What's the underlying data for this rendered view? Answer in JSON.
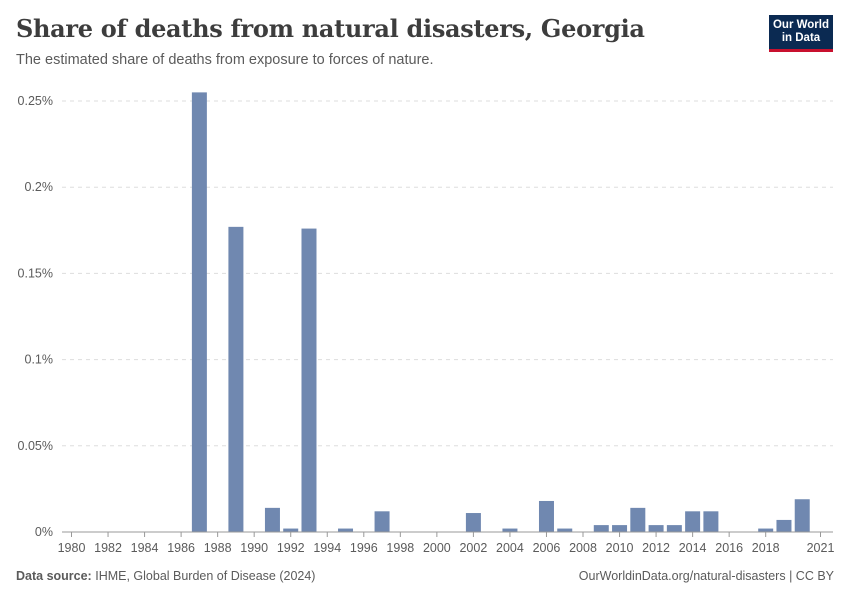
{
  "header": {
    "title": "Share of deaths from natural disasters, Georgia",
    "subtitle": "The estimated share of deaths from exposure to forces of nature.",
    "logo_line1": "Our World",
    "logo_line2": "in Data"
  },
  "footer": {
    "source_label": "Data source:",
    "source_text": "IHME, Global Burden of Disease (2024)",
    "link_text": "OurWorldinData.org/natural-disasters | CC BY"
  },
  "colors": {
    "bar": "#7088b0",
    "grid": "#dddddd",
    "axis": "#999999"
  },
  "chart_data": {
    "type": "bar",
    "title": "Share of deaths from natural disasters, Georgia",
    "xlabel": "",
    "ylabel": "",
    "ylim": [
      0,
      0.25
    ],
    "yticks": [
      0,
      0.05,
      0.1,
      0.15,
      0.2,
      0.25
    ],
    "ytick_labels": [
      "0%",
      "0.05%",
      "0.1%",
      "0.15%",
      "0.2%",
      "0.25%"
    ],
    "xticks": [
      1980,
      1982,
      1984,
      1986,
      1988,
      1990,
      1992,
      1994,
      1996,
      1998,
      2000,
      2002,
      2004,
      2006,
      2008,
      2010,
      2012,
      2014,
      2016,
      2018,
      2021
    ],
    "xtick_labels": [
      "1980",
      "1982",
      "1984",
      "1986",
      "1988",
      "1990",
      "1992",
      "1994",
      "1996",
      "1998",
      "2000",
      "2002",
      "2004",
      "2006",
      "2008",
      "2010",
      "2012",
      "2014",
      "2016",
      "2018",
      "2021"
    ],
    "series": [
      {
        "name": "Share of deaths from natural disasters",
        "unit": "%",
        "x": [
          1980,
          1981,
          1982,
          1983,
          1984,
          1985,
          1986,
          1987,
          1988,
          1989,
          1990,
          1991,
          1992,
          1993,
          1994,
          1995,
          1996,
          1997,
          1998,
          1999,
          2000,
          2001,
          2002,
          2003,
          2004,
          2005,
          2006,
          2007,
          2008,
          2009,
          2010,
          2011,
          2012,
          2013,
          2014,
          2015,
          2016,
          2017,
          2018,
          2019,
          2020,
          2021
        ],
        "values": [
          0,
          0,
          0,
          0,
          0,
          0,
          0,
          0.255,
          0,
          0.177,
          0,
          0.014,
          0.002,
          0.176,
          0,
          0.002,
          0,
          0.012,
          0,
          0,
          0,
          0,
          0.011,
          0,
          0.002,
          0,
          0.018,
          0.002,
          0,
          0.004,
          0.004,
          0.014,
          0.004,
          0.004,
          0.012,
          0.012,
          0,
          0,
          0.002,
          0.007,
          0.019,
          0
        ]
      }
    ]
  }
}
